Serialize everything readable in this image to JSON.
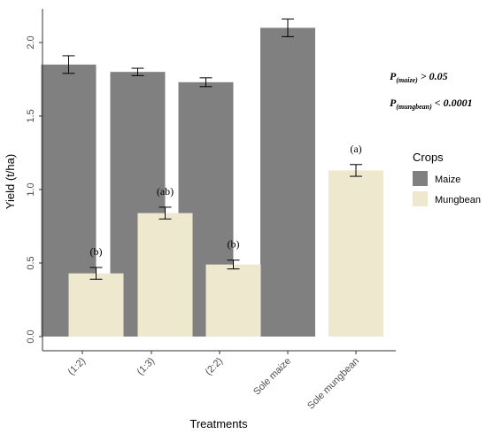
{
  "chart_data": {
    "type": "bar",
    "xlabel": "Treatments",
    "ylabel": "Yield (t/ha)",
    "ylim": [
      0,
      2.2
    ],
    "yticks": [
      "0.0",
      "0.5",
      "1.0",
      "1.5",
      "2.0"
    ],
    "yticks_values": [
      0,
      0.5,
      1.0,
      1.5,
      2.0
    ],
    "grid": false,
    "categories": [
      "(1:2)",
      "(1:3)",
      "(2:2)",
      "Sole maize",
      "Sole mungbean"
    ],
    "legend": {
      "title": "Crops",
      "position": "right"
    },
    "series": [
      {
        "name": "Maize",
        "color": "#808080",
        "values": [
          1.85,
          1.8,
          1.73,
          2.1,
          null
        ],
        "errors": [
          0.06,
          0.025,
          0.03,
          0.06,
          null
        ],
        "labels": [
          "",
          "",
          "",
          "",
          ""
        ]
      },
      {
        "name": "Mungbean",
        "color": "#eee8cf",
        "values": [
          0.43,
          0.84,
          0.49,
          null,
          1.13
        ],
        "errors": [
          0.04,
          0.04,
          0.03,
          null,
          0.04
        ],
        "labels": [
          "(b)",
          "(ab)",
          "(b)",
          "",
          "(a)"
        ]
      }
    ],
    "annotations": {
      "p_maize": {
        "main": "P",
        "sub": "(maize)",
        "rest": " > 0.05"
      },
      "p_mungbean": {
        "main": "P",
        "sub": "(mungbean)",
        "rest": " < 0.0001"
      }
    }
  }
}
